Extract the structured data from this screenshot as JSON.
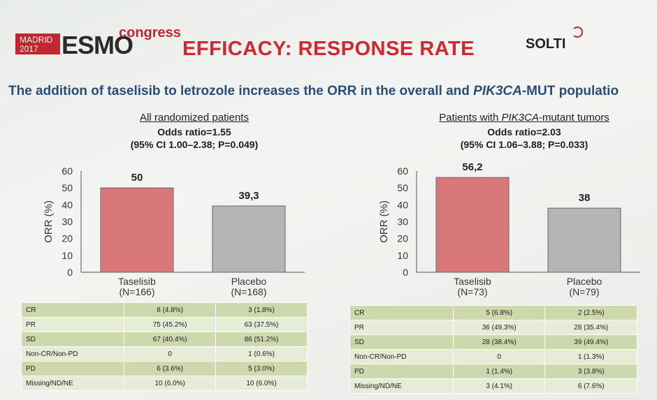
{
  "header": {
    "congress_city": "MADRID",
    "congress_year": "2017",
    "congress_name": "ESMO",
    "congress_word": "congress",
    "title": "EFFICACY: RESPONSE RATE",
    "sponsor": "SOLTI"
  },
  "subtitle": {
    "part1": "The addition of taselisib to letrozole increases the ORR in the overall and ",
    "italic": "PIK3CA",
    "part2": "-MUT populatio"
  },
  "panels": [
    {
      "heading": "All randomized patients",
      "odds": "Odds ratio=1.55",
      "ci": "(95% CI 1.00–2.38; P=0.049)",
      "rows": [
        {
          "label": "CR",
          "taselisib": "8 (4.8%)",
          "placebo": "3 (1.8%)"
        },
        {
          "label": "PR",
          "taselisib": "75 (45.2%)",
          "placebo": "63 (37.5%)"
        },
        {
          "label": "SD",
          "taselisib": "67 (40.4%)",
          "placebo": "86 (51.2%)"
        },
        {
          "label": "Non-CR/Non-PD",
          "taselisib": "0",
          "placebo": "1 (0.6%)"
        },
        {
          "label": "PD",
          "taselisib": "6 (3.6%)",
          "placebo": "5 (3.0%)"
        },
        {
          "label": "Missing/ND/NE",
          "taselisib": "10 (6.0%)",
          "placebo": "10 (6.0%)"
        }
      ]
    },
    {
      "heading_pre": "Patients with ",
      "heading_italic": "PIK3CA",
      "heading_post": "-mutant tumors",
      "odds": "Odds ratio=2.03",
      "ci": "(95% CI 1.06–3.88; P=0.033)",
      "rows": [
        {
          "label": "CR",
          "taselisib": "5 (6.8%)",
          "placebo": "2 (2.5%)"
        },
        {
          "label": "PR",
          "taselisib": "36 (49.3%)",
          "placebo": "28 (35.4%)"
        },
        {
          "label": "SD",
          "taselisib": "28 (38.4%)",
          "placebo": "39 (49.4%)"
        },
        {
          "label": "Non-CR/Non-PD",
          "taselisib": "0",
          "placebo": "1 (1.3%)"
        },
        {
          "label": "PD",
          "taselisib": "1 (1.4%)",
          "placebo": "3 (3.8%)"
        },
        {
          "label": "Missing/ND/NE",
          "taselisib": "3 (4.1%)",
          "placebo": "6 (7.6%)"
        }
      ]
    }
  ],
  "chart_data": [
    {
      "type": "bar",
      "categories": [
        "Taselisib\n(N=166)",
        "Placebo\n(N=168)"
      ],
      "values": [
        50,
        39.3
      ],
      "data_labels": [
        "50",
        "39,3"
      ],
      "ylabel": "ORR (%)",
      "ylim": [
        0,
        60
      ],
      "yticks": [
        0,
        10,
        20,
        30,
        40,
        50,
        60
      ],
      "colors": [
        "#d9787a",
        "#b5b5b5"
      ],
      "grid": false
    },
    {
      "type": "bar",
      "categories": [
        "Taselisib\n(N=73)",
        "Placebo\n(N=79)"
      ],
      "values": [
        56.2,
        38
      ],
      "data_labels": [
        "56,2",
        "38"
      ],
      "ylabel": "ORR (%)",
      "ylim": [
        0,
        60
      ],
      "yticks": [
        0,
        10,
        20,
        30,
        40,
        50,
        60
      ],
      "colors": [
        "#d9787a",
        "#b5b5b5"
      ],
      "grid": false
    }
  ]
}
